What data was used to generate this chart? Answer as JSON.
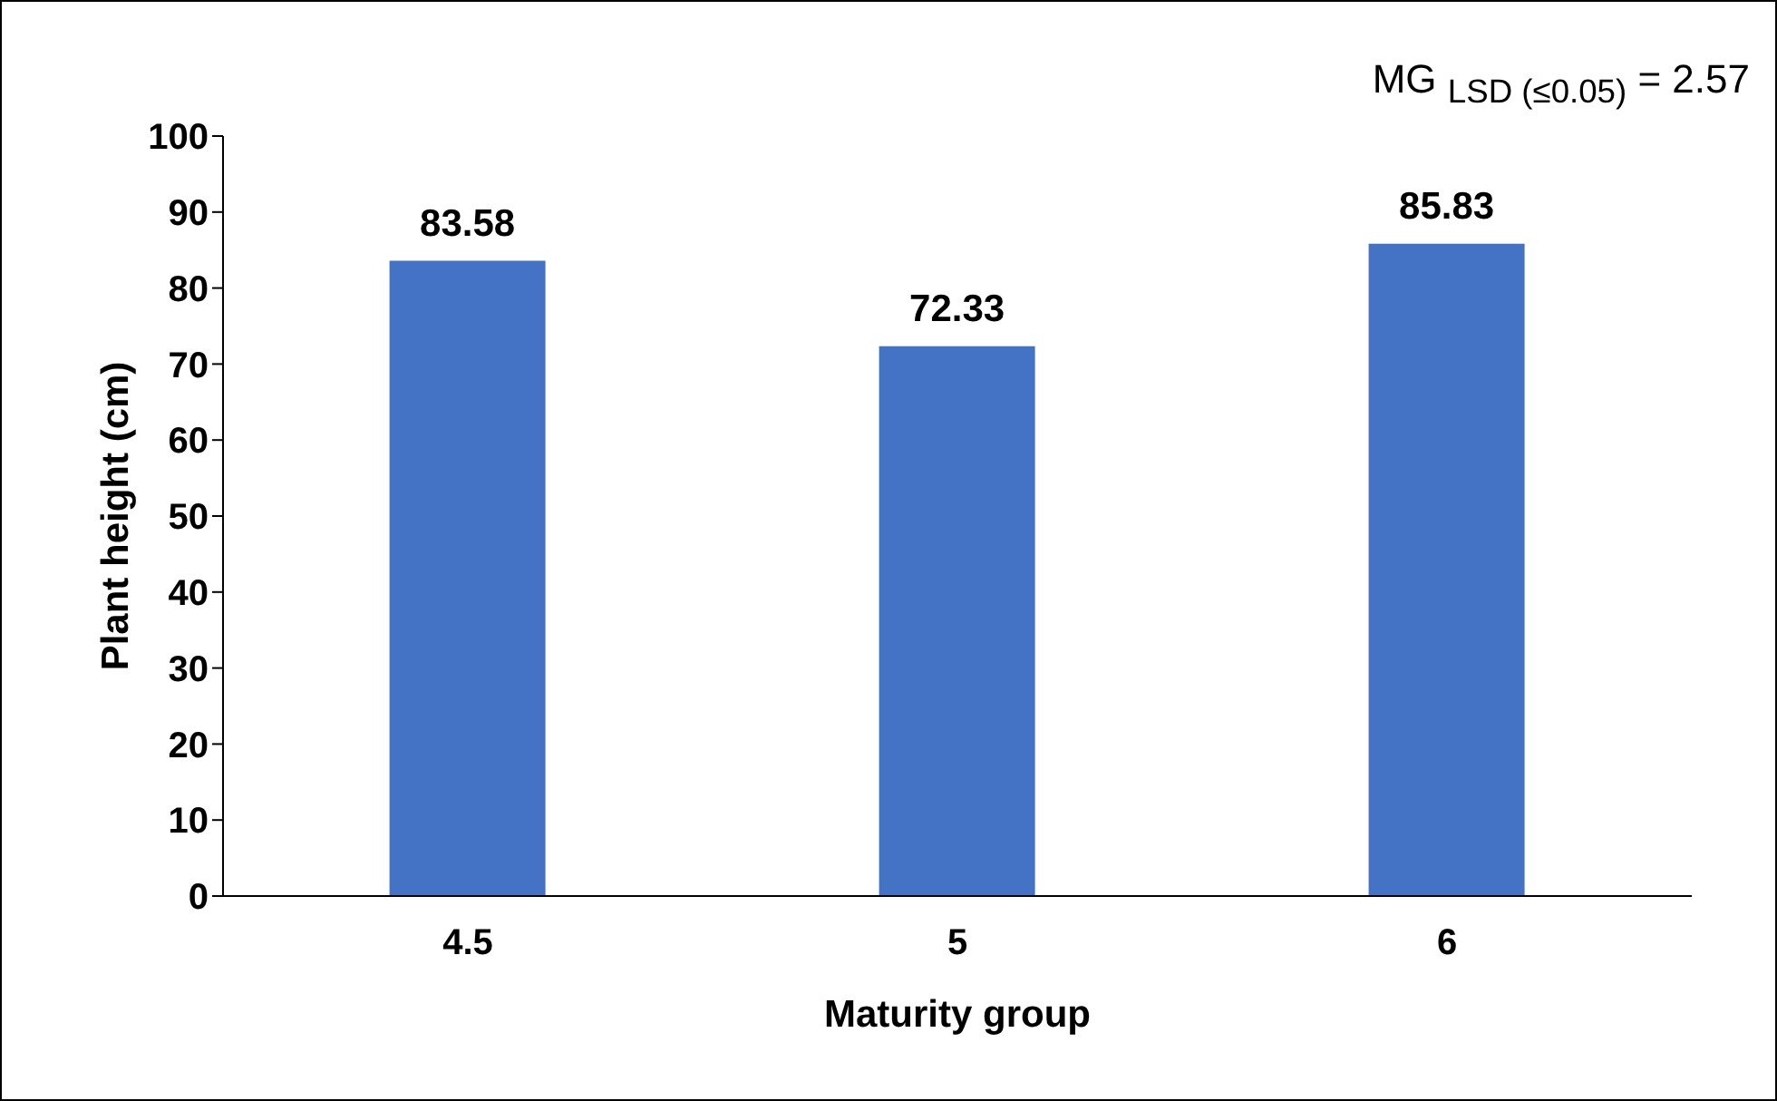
{
  "chart_data": {
    "type": "bar",
    "xlabel": "Maturity group",
    "ylabel": "Plant height (cm)",
    "categories": [
      "4.5",
      "5",
      "6"
    ],
    "values": [
      83.58,
      72.33,
      85.83
    ],
    "color": "#4472c4",
    "ylim": [
      0,
      100
    ],
    "yticks": [
      0,
      10,
      20,
      30,
      40,
      50,
      60,
      70,
      80,
      90,
      100
    ],
    "grid": false,
    "data_labels": true,
    "annotations": [
      "MG $_{LSD (≤0.05)}$ = 2.57"
    ]
  }
}
